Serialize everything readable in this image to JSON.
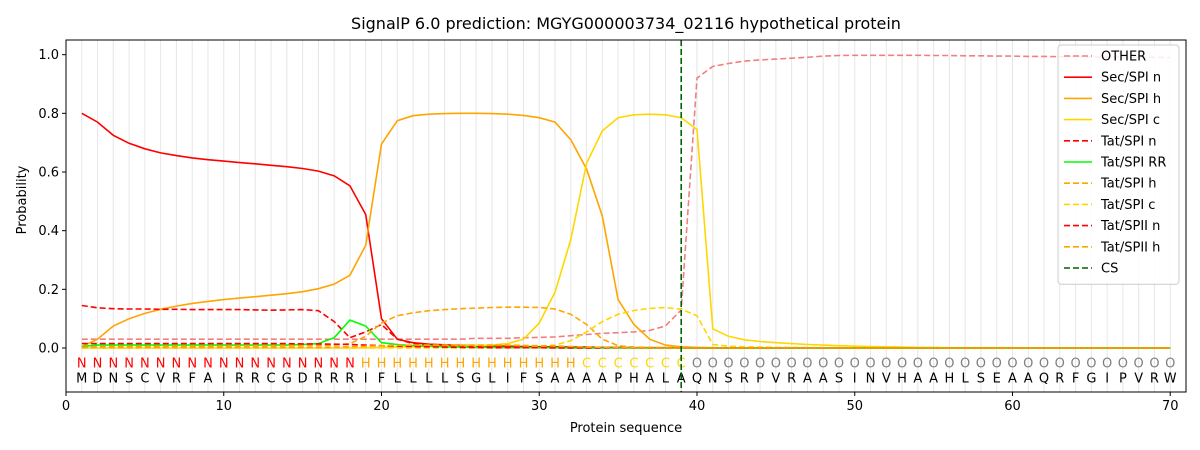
{
  "chart_data": {
    "type": "line",
    "title": "SignalP 6.0 prediction: MGYG000003734_02116 hypothetical protein",
    "xlabel": "Protein sequence",
    "ylabel": "Probability",
    "xlim": [
      0,
      71
    ],
    "ylim": [
      -0.15,
      1.05
    ],
    "xticks": [
      0,
      10,
      20,
      30,
      40,
      50,
      60,
      70
    ],
    "yticks": [
      0.0,
      0.2,
      0.4,
      0.6,
      0.8,
      1.0
    ],
    "ytick_labels": [
      "0.0",
      "0.2",
      "0.4",
      "0.6",
      "0.8",
      "1.0"
    ],
    "grid": "vertical lines at each residue",
    "legend_position": "top-right",
    "sequence": [
      "M",
      "D",
      "N",
      "S",
      "C",
      "V",
      "R",
      "F",
      "A",
      "I",
      "R",
      "R",
      "C",
      "G",
      "D",
      "R",
      "R",
      "R",
      "I",
      "F",
      "L",
      "L",
      "L",
      "L",
      "S",
      "G",
      "L",
      "I",
      "F",
      "S",
      "A",
      "A",
      "A",
      "A",
      "P",
      "H",
      "A",
      "L",
      "A",
      "Q",
      "N",
      "S",
      "R",
      "P",
      "V",
      "R",
      "A",
      "A",
      "S",
      "I",
      "N",
      "V",
      "H",
      "A",
      "A",
      "H",
      "L",
      "S",
      "E",
      "A",
      "A",
      "Q",
      "R",
      "F",
      "G",
      "I",
      "P",
      "V",
      "R",
      "W"
    ],
    "region_labels": [
      "N",
      "N",
      "N",
      "N",
      "N",
      "N",
      "N",
      "N",
      "N",
      "N",
      "N",
      "N",
      "N",
      "N",
      "N",
      "N",
      "N",
      "N",
      "H",
      "H",
      "H",
      "H",
      "H",
      "H",
      "H",
      "H",
      "H",
      "H",
      "H",
      "H",
      "H",
      "H",
      "C",
      "C",
      "C",
      "C",
      "C",
      "C",
      "C",
      "O",
      "O",
      "O",
      "O",
      "O",
      "O",
      "O",
      "O",
      "O",
      "O",
      "O",
      "O",
      "O",
      "O",
      "O",
      "O",
      "O",
      "O",
      "O",
      "O",
      "O",
      "O",
      "O",
      "O",
      "O",
      "O",
      "O",
      "O",
      "O",
      "O",
      "O"
    ],
    "region_colors": {
      "N": "#ff0000",
      "H": "#ffa500",
      "C": "#ffd700",
      "O": "#808080"
    },
    "cleavage_site": 39,
    "series": [
      {
        "name": "OTHER",
        "color": "#f08080",
        "dash": true,
        "values": [
          0.03,
          0.03,
          0.03,
          0.03,
          0.03,
          0.03,
          0.03,
          0.03,
          0.03,
          0.03,
          0.03,
          0.03,
          0.03,
          0.03,
          0.03,
          0.03,
          0.03,
          0.03,
          0.03,
          0.03,
          0.03,
          0.03,
          0.03,
          0.03,
          0.03,
          0.033,
          0.033,
          0.033,
          0.035,
          0.036,
          0.038,
          0.042,
          0.046,
          0.05,
          0.052,
          0.055,
          0.06,
          0.075,
          0.13,
          0.92,
          0.96,
          0.97,
          0.978,
          0.982,
          0.985,
          0.988,
          0.991,
          0.995,
          0.997,
          0.998,
          0.998,
          0.998,
          0.998,
          0.998,
          0.997,
          0.997,
          0.996,
          0.996,
          0.995,
          0.995,
          0.994,
          0.994,
          0.993,
          0.993,
          0.992,
          0.992,
          0.992,
          0.991,
          0.991,
          0.99
        ]
      },
      {
        "name": "Sec/SPI n",
        "color": "#ff0000",
        "dash": false,
        "values": [
          0.8,
          0.77,
          0.725,
          0.698,
          0.679,
          0.665,
          0.656,
          0.648,
          0.642,
          0.637,
          0.632,
          0.628,
          0.623,
          0.618,
          0.612,
          0.603,
          0.587,
          0.553,
          0.455,
          0.1,
          0.03,
          0.018,
          0.013,
          0.011,
          0.009,
          0.008,
          0.007,
          0.006,
          0.005,
          0.004,
          0.004,
          0.003,
          0.003,
          0.002,
          0.002,
          0.001,
          0.001,
          0.001,
          0.001,
          0,
          0,
          0,
          0,
          0,
          0,
          0,
          0,
          0,
          0,
          0,
          0,
          0,
          0,
          0,
          0,
          0,
          0,
          0,
          0,
          0,
          0,
          0,
          0,
          0,
          0,
          0,
          0,
          0,
          0,
          0
        ]
      },
      {
        "name": "Sec/SPI h",
        "color": "#ffa500",
        "dash": false,
        "values": [
          0.005,
          0.03,
          0.075,
          0.1,
          0.118,
          0.132,
          0.143,
          0.152,
          0.159,
          0.165,
          0.17,
          0.175,
          0.18,
          0.185,
          0.192,
          0.202,
          0.218,
          0.248,
          0.35,
          0.695,
          0.775,
          0.792,
          0.797,
          0.799,
          0.8,
          0.8,
          0.799,
          0.797,
          0.793,
          0.785,
          0.77,
          0.71,
          0.61,
          0.45,
          0.165,
          0.08,
          0.03,
          0.01,
          0.004,
          0.002,
          0.001,
          0,
          0,
          0,
          0,
          0,
          0,
          0,
          0,
          0,
          0,
          0,
          0,
          0,
          0,
          0,
          0,
          0,
          0,
          0,
          0,
          0,
          0,
          0,
          0,
          0,
          0,
          0,
          0,
          0
        ]
      },
      {
        "name": "Sec/SPI c",
        "color": "#ffd700",
        "dash": false,
        "values": [
          0,
          0,
          0,
          0,
          0,
          0,
          0,
          0,
          0,
          0,
          0,
          0,
          0,
          0,
          0,
          0,
          0,
          0,
          0.001,
          0.002,
          0.003,
          0.004,
          0.005,
          0.006,
          0.007,
          0.008,
          0.01,
          0.015,
          0.03,
          0.085,
          0.19,
          0.37,
          0.63,
          0.74,
          0.785,
          0.795,
          0.797,
          0.795,
          0.785,
          0.745,
          0.065,
          0.04,
          0.028,
          0.022,
          0.018,
          0.015,
          0.012,
          0.01,
          0.008,
          0.006,
          0.005,
          0.004,
          0.003,
          0.002,
          0.002,
          0.001,
          0.001,
          0.001,
          0.001,
          0.001,
          0,
          0,
          0,
          0,
          0,
          0,
          0,
          0,
          0,
          0
        ]
      },
      {
        "name": "Tat/SPI n",
        "color": "#ff0000",
        "dash": true,
        "values": [
          0.145,
          0.137,
          0.134,
          0.133,
          0.133,
          0.132,
          0.132,
          0.131,
          0.131,
          0.131,
          0.131,
          0.13,
          0.129,
          0.13,
          0.131,
          0.127,
          0.09,
          0.035,
          0.055,
          0.08,
          0.03,
          0.015,
          0.01,
          0.007,
          0.005,
          0.004,
          0.003,
          0.003,
          0.002,
          0.002,
          0.002,
          0.001,
          0.001,
          0.001,
          0.001,
          0.001,
          0,
          0,
          0,
          0,
          0,
          0,
          0,
          0,
          0,
          0,
          0,
          0,
          0,
          0,
          0,
          0,
          0,
          0,
          0,
          0,
          0,
          0,
          0,
          0,
          0,
          0,
          0,
          0,
          0,
          0,
          0,
          0,
          0,
          0
        ]
      },
      {
        "name": "Tat/SPI RR",
        "color": "#00ff00",
        "dash": false,
        "values": [
          0.005,
          0.01,
          0.01,
          0.01,
          0.01,
          0.01,
          0.01,
          0.01,
          0.01,
          0.01,
          0.01,
          0.01,
          0.01,
          0.01,
          0.012,
          0.015,
          0.035,
          0.095,
          0.075,
          0.018,
          0.012,
          0.008,
          0.006,
          0.004,
          0.003,
          0.002,
          0.002,
          0.001,
          0.001,
          0.001,
          0.001,
          0,
          0,
          0,
          0,
          0,
          0,
          0,
          0,
          0,
          0,
          0,
          0,
          0,
          0,
          0,
          0,
          0,
          0,
          0,
          0,
          0,
          0,
          0,
          0,
          0,
          0,
          0,
          0,
          0,
          0,
          0,
          0,
          0,
          0,
          0,
          0,
          0,
          0,
          0
        ]
      },
      {
        "name": "Tat/SPI h",
        "color": "#ffa500",
        "dash": true,
        "values": [
          0.002,
          0.004,
          0.005,
          0.005,
          0.005,
          0.006,
          0.006,
          0.006,
          0.006,
          0.006,
          0.007,
          0.007,
          0.007,
          0.008,
          0.008,
          0.009,
          0.01,
          0.015,
          0.04,
          0.085,
          0.11,
          0.12,
          0.127,
          0.131,
          0.134,
          0.136,
          0.138,
          0.139,
          0.139,
          0.138,
          0.133,
          0.115,
          0.08,
          0.03,
          0.008,
          0.003,
          0.002,
          0.001,
          0.001,
          0,
          0,
          0,
          0,
          0,
          0,
          0,
          0,
          0,
          0,
          0,
          0,
          0,
          0,
          0,
          0,
          0,
          0,
          0,
          0,
          0,
          0,
          0,
          0,
          0,
          0,
          0,
          0,
          0,
          0,
          0
        ]
      },
      {
        "name": "Tat/SPI c",
        "color": "#ffd700",
        "dash": true,
        "values": [
          0,
          0,
          0,
          0,
          0,
          0,
          0,
          0,
          0,
          0,
          0,
          0,
          0,
          0,
          0,
          0,
          0,
          0,
          0,
          0,
          0,
          0,
          0,
          0,
          0,
          0,
          0,
          0.001,
          0.002,
          0.005,
          0.01,
          0.025,
          0.055,
          0.09,
          0.115,
          0.128,
          0.135,
          0.138,
          0.132,
          0.11,
          0.012,
          0.006,
          0.004,
          0.003,
          0.002,
          0.002,
          0.001,
          0.001,
          0.001,
          0,
          0,
          0,
          0,
          0,
          0,
          0,
          0,
          0,
          0,
          0,
          0,
          0,
          0,
          0,
          0,
          0,
          0,
          0,
          0,
          0
        ]
      },
      {
        "name": "Tat/SPII n",
        "color": "#ff0000",
        "dash": true,
        "values": [
          0.015,
          0.015,
          0.015,
          0.015,
          0.015,
          0.015,
          0.015,
          0.015,
          0.015,
          0.015,
          0.015,
          0.015,
          0.015,
          0.015,
          0.014,
          0.014,
          0.013,
          0.012,
          0.01,
          0.008,
          0.006,
          0.005,
          0.004,
          0.003,
          0.002,
          0.002,
          0.001,
          0.001,
          0.001,
          0.001,
          0,
          0,
          0,
          0,
          0,
          0,
          0,
          0,
          0,
          0,
          0,
          0,
          0,
          0,
          0,
          0,
          0,
          0,
          0,
          0,
          0,
          0,
          0,
          0,
          0,
          0,
          0,
          0,
          0,
          0,
          0,
          0,
          0,
          0,
          0,
          0,
          0,
          0,
          0,
          0
        ]
      },
      {
        "name": "Tat/SPII h",
        "color": "#ffa500",
        "dash": true,
        "values": [
          0.002,
          0.002,
          0.002,
          0.002,
          0.002,
          0.002,
          0.002,
          0.002,
          0.002,
          0.002,
          0.002,
          0.002,
          0.002,
          0.002,
          0.002,
          0.002,
          0.003,
          0.004,
          0.006,
          0.008,
          0.009,
          0.01,
          0.01,
          0.01,
          0.01,
          0.01,
          0.01,
          0.01,
          0.009,
          0.008,
          0.007,
          0.005,
          0.003,
          0.002,
          0.001,
          0.001,
          0,
          0,
          0,
          0,
          0,
          0,
          0,
          0,
          0,
          0,
          0,
          0,
          0,
          0,
          0,
          0,
          0,
          0,
          0,
          0,
          0,
          0,
          0,
          0,
          0,
          0,
          0,
          0,
          0,
          0,
          0,
          0,
          0,
          0
        ]
      }
    ],
    "cs_legend": {
      "name": "CS",
      "color": "#006400",
      "dash": true
    }
  }
}
